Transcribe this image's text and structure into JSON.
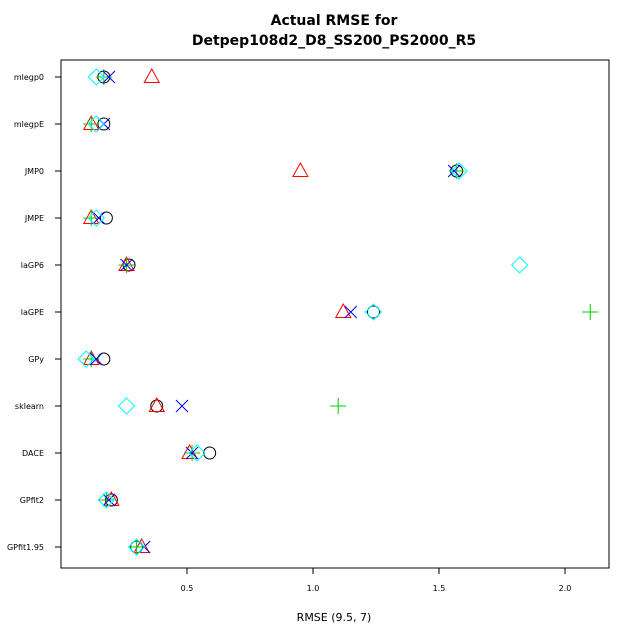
{
  "chart_data": {
    "type": "scatter",
    "title_lines": [
      "Actual RMSE for",
      "Detpep108d2_D8_SS200_PS2000_R5"
    ],
    "xlabel": "RMSE (9.5, 7)",
    "ylabel": "",
    "xlim": [
      0.0,
      2.15
    ],
    "x_ticks": [
      0.5,
      1.0,
      1.5,
      2.0
    ],
    "x_tick_labels": [
      "0.5",
      "1.0",
      "1.5",
      "2.0"
    ],
    "categories": [
      "mlegp0",
      "mlegpE",
      "JMP0",
      "JMPE",
      "laGP6",
      "laGPE",
      "GPy",
      "sklearn",
      "DACE",
      "GPfit2",
      "GPfit1.95"
    ],
    "grid": false,
    "legend": "none",
    "series": [
      {
        "marker": "circle",
        "color": "#000000",
        "values": [
          0.17,
          0.17,
          1.57,
          0.18,
          0.27,
          1.24,
          0.17,
          0.38,
          0.59,
          0.2,
          0.3
        ]
      },
      {
        "marker": "triangle",
        "color": "#ff0000",
        "values": [
          0.36,
          0.12,
          0.95,
          0.12,
          0.26,
          1.12,
          0.12,
          0.38,
          0.51,
          0.2,
          0.32
        ]
      },
      {
        "marker": "plus",
        "color": "#00cc00",
        "values": [
          0.17,
          0.12,
          1.57,
          0.12,
          0.26,
          2.1,
          0.12,
          1.1,
          0.52,
          0.18,
          0.3
        ]
      },
      {
        "marker": "x",
        "color": "#0000ff",
        "values": [
          0.19,
          0.17,
          1.56,
          0.15,
          0.26,
          1.15,
          0.14,
          0.48,
          0.52,
          0.19,
          0.33
        ]
      },
      {
        "marker": "diamond",
        "color": "#00ffff",
        "values": [
          0.14,
          0.14,
          1.58,
          0.14,
          1.82,
          1.24,
          0.1,
          0.26,
          0.54,
          0.18,
          0.3
        ]
      }
    ]
  }
}
